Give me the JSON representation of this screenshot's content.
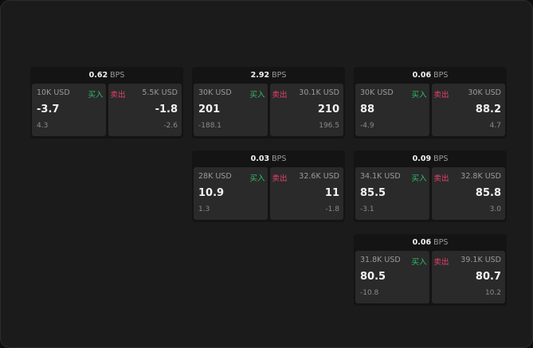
{
  "labels": {
    "buy": "买入",
    "sell": "卖出",
    "unit": "BPS"
  },
  "colors": {
    "buy": "#2fbf6b",
    "sell": "#e8406a"
  },
  "quotes": [
    {
      "spread": "0.62",
      "buy": {
        "qty": "10K USD",
        "price": "-3.7",
        "change": "4.3"
      },
      "sell": {
        "qty": "5.5K USD",
        "price": "-1.8",
        "change": "-2.6"
      }
    },
    {
      "spread": "2.92",
      "buy": {
        "qty": "30K USD",
        "price": "201",
        "change": "-188.1"
      },
      "sell": {
        "qty": "30.1K USD",
        "price": "210",
        "change": "196.5"
      }
    },
    {
      "spread": "0.06",
      "buy": {
        "qty": "30K USD",
        "price": "88",
        "change": "-4.9"
      },
      "sell": {
        "qty": "30K USD",
        "price": "88.2",
        "change": "4.7"
      }
    },
    {
      "spread": "0.03",
      "buy": {
        "qty": "28K USD",
        "price": "10.9",
        "change": "1.3"
      },
      "sell": {
        "qty": "32.6K USD",
        "price": "11",
        "change": "-1.8"
      }
    },
    {
      "spread": "0.09",
      "buy": {
        "qty": "34.1K USD",
        "price": "85.5",
        "change": "-3.1"
      },
      "sell": {
        "qty": "32.8K USD",
        "price": "85.8",
        "change": "3.0"
      }
    },
    {
      "spread": "0.06",
      "buy": {
        "qty": "31.8K USD",
        "price": "80.5",
        "change": "-10.8"
      },
      "sell": {
        "qty": "39.1K USD",
        "price": "80.7",
        "change": "10.2"
      }
    }
  ]
}
